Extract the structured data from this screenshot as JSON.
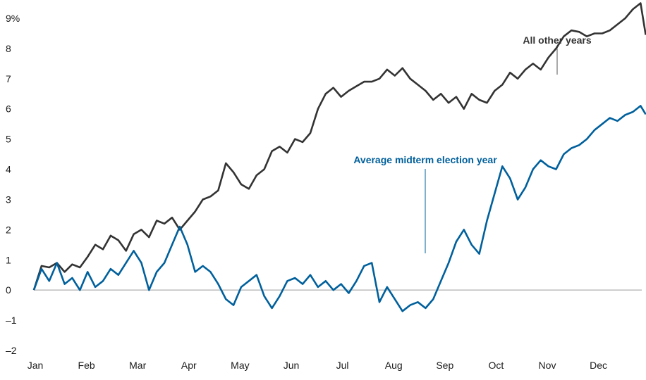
{
  "chart_data": {
    "type": "line",
    "title": "",
    "xlabel": "",
    "ylabel": "",
    "y_unit_label": "9%",
    "ylim": [
      -2,
      9
    ],
    "yticks": [
      "9%",
      "8",
      "7",
      "6",
      "5",
      "4",
      "3",
      "2",
      "1",
      "0",
      "–1",
      "–2"
    ],
    "ytick_values": [
      9,
      8,
      7,
      6,
      5,
      4,
      3,
      2,
      1,
      0,
      -1,
      -2
    ],
    "xlim": [
      0,
      12
    ],
    "xticks": [
      "Jan",
      "Feb",
      "Mar",
      "Apr",
      "May",
      "Jun",
      "Jul",
      "Aug",
      "Sep",
      "Oct",
      "Nov",
      "Dec"
    ],
    "xtick_values": [
      0,
      1,
      2,
      3,
      4,
      5,
      6,
      7,
      8,
      9,
      10,
      11
    ],
    "grid": false,
    "zero_line": true,
    "series": [
      {
        "name": "All other years",
        "color": "#333333",
        "x": [
          0,
          0.15,
          0.3,
          0.45,
          0.6,
          0.75,
          0.9,
          1.05,
          1.2,
          1.35,
          1.5,
          1.65,
          1.8,
          1.95,
          2.1,
          2.25,
          2.4,
          2.55,
          2.7,
          2.85,
          3.0,
          3.15,
          3.3,
          3.45,
          3.6,
          3.75,
          3.9,
          4.05,
          4.2,
          4.35,
          4.5,
          4.65,
          4.8,
          4.95,
          5.1,
          5.25,
          5.4,
          5.55,
          5.7,
          5.85,
          6.0,
          6.15,
          6.3,
          6.45,
          6.6,
          6.75,
          6.9,
          7.05,
          7.2,
          7.35,
          7.5,
          7.65,
          7.8,
          7.95,
          8.1,
          8.25,
          8.4,
          8.55,
          8.7,
          8.85,
          9.0,
          9.15,
          9.3,
          9.45,
          9.6,
          9.75,
          9.9,
          10.05,
          10.2,
          10.35,
          10.5,
          10.65,
          10.8,
          10.95,
          11.1,
          11.25,
          11.4,
          11.55,
          11.7,
          11.85,
          11.95
        ],
        "values": [
          0.0,
          0.8,
          0.75,
          0.9,
          0.6,
          0.85,
          0.75,
          1.1,
          1.5,
          1.35,
          1.8,
          1.65,
          1.3,
          1.85,
          2.0,
          1.75,
          2.3,
          2.2,
          2.4,
          2.0,
          2.3,
          2.6,
          3.0,
          3.1,
          3.3,
          4.2,
          3.9,
          3.5,
          3.35,
          3.8,
          4.0,
          4.6,
          4.75,
          4.55,
          5.0,
          4.9,
          5.2,
          6.0,
          6.5,
          6.7,
          6.4,
          6.6,
          6.75,
          6.9,
          6.9,
          7.0,
          7.3,
          7.1,
          7.35,
          7.0,
          6.8,
          6.6,
          6.3,
          6.5,
          6.2,
          6.4,
          6.0,
          6.5,
          6.3,
          6.2,
          6.6,
          6.8,
          7.2,
          7.0,
          7.3,
          7.5,
          7.3,
          7.7,
          8.0,
          8.4,
          8.6,
          8.55,
          8.4,
          8.5,
          8.5,
          8.6,
          8.8,
          9.0,
          9.3,
          9.5,
          8.45
        ]
      },
      {
        "name": "Average midterm election year",
        "color": "#00609c",
        "x": [
          0,
          0.15,
          0.3,
          0.45,
          0.6,
          0.75,
          0.9,
          1.05,
          1.2,
          1.35,
          1.5,
          1.65,
          1.8,
          1.95,
          2.1,
          2.25,
          2.4,
          2.55,
          2.7,
          2.85,
          3.0,
          3.15,
          3.3,
          3.45,
          3.6,
          3.75,
          3.9,
          4.05,
          4.2,
          4.35,
          4.5,
          4.65,
          4.8,
          4.95,
          5.1,
          5.25,
          5.4,
          5.55,
          5.7,
          5.85,
          6.0,
          6.15,
          6.3,
          6.45,
          6.6,
          6.75,
          6.9,
          7.05,
          7.2,
          7.35,
          7.5,
          7.65,
          7.8,
          7.95,
          8.1,
          8.25,
          8.4,
          8.55,
          8.7,
          8.85,
          9.0,
          9.15,
          9.3,
          9.45,
          9.6,
          9.75,
          9.9,
          10.05,
          10.2,
          10.35,
          10.5,
          10.65,
          10.8,
          10.95,
          11.1,
          11.25,
          11.4,
          11.55,
          11.7,
          11.85,
          11.95
        ],
        "values": [
          0.0,
          0.7,
          0.3,
          0.9,
          0.2,
          0.4,
          0.0,
          0.6,
          0.1,
          0.3,
          0.7,
          0.5,
          0.9,
          1.3,
          0.9,
          0.0,
          0.6,
          0.9,
          1.5,
          2.1,
          1.5,
          0.6,
          0.8,
          0.6,
          0.2,
          -0.3,
          -0.5,
          0.1,
          0.3,
          0.5,
          -0.2,
          -0.6,
          -0.2,
          0.3,
          0.4,
          0.2,
          0.5,
          0.1,
          0.3,
          0.0,
          0.2,
          -0.1,
          0.3,
          0.8,
          0.9,
          -0.4,
          0.1,
          -0.3,
          -0.7,
          -0.5,
          -0.4,
          -0.6,
          -0.3,
          0.3,
          0.9,
          1.6,
          2.0,
          1.5,
          1.2,
          2.3,
          3.2,
          4.1,
          3.7,
          3.0,
          3.4,
          4.0,
          4.3,
          4.1,
          4.0,
          4.5,
          4.7,
          4.8,
          5.0,
          5.3,
          5.5,
          5.7,
          5.6,
          5.8,
          5.9,
          6.1,
          5.82
        ]
      }
    ],
    "annotations": [
      {
        "text": "All other years",
        "series": 0
      },
      {
        "text": "Average midterm election year",
        "series": 1
      }
    ]
  }
}
